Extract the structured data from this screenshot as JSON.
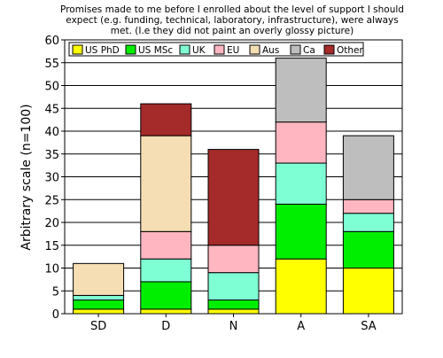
{
  "chart_data": {
    "type": "bar",
    "stacked": true,
    "title_lines": [
      "Promises made to me before I enrolled about the level of support I should",
      "expect (e.g. funding, technical, laboratory, infrastructure), were always",
      "met. (I.e they did not paint an overly glossy picture)"
    ],
    "xlabel": "",
    "ylabel": "Arbitrary scale (n=100)",
    "ylim": [
      0,
      60
    ],
    "yticks": [
      0,
      5,
      10,
      15,
      20,
      25,
      30,
      35,
      40,
      45,
      50,
      55,
      60
    ],
    "grid": true,
    "legend_position": "top-inside",
    "categories": [
      "SD",
      "D",
      "N",
      "A",
      "SA"
    ],
    "series": [
      {
        "name": "US PhD",
        "color": "#ffff00",
        "values": [
          1,
          1,
          1,
          12,
          10
        ]
      },
      {
        "name": "US MSc",
        "color": "#00ee00",
        "values": [
          2,
          6,
          2,
          12,
          8
        ]
      },
      {
        "name": "UK",
        "color": "#7fffd4",
        "values": [
          1,
          5,
          6,
          9,
          4
        ]
      },
      {
        "name": "EU",
        "color": "#ffb6c1",
        "values": [
          0,
          6,
          6,
          9,
          3
        ]
      },
      {
        "name": "Aus",
        "color": "#f5deb3",
        "values": [
          7,
          21,
          0,
          0,
          0
        ]
      },
      {
        "name": "Ca",
        "color": "#bebebe",
        "values": [
          0,
          0,
          0,
          14,
          14
        ]
      },
      {
        "name": "Other",
        "color": "#a52a2a",
        "values": [
          0,
          7,
          21,
          0,
          0
        ]
      }
    ]
  }
}
